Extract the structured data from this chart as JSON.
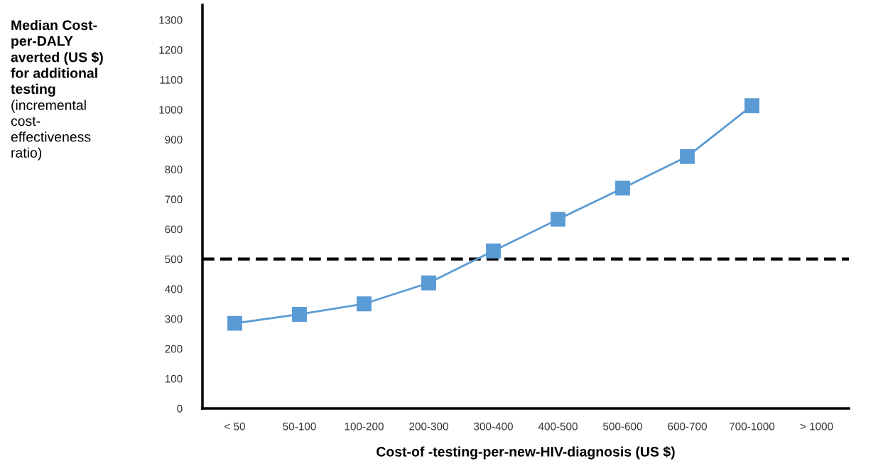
{
  "chart_data": {
    "type": "line",
    "xlabel": "Cost-of -testing-per-new-HIV-diagnosis (US $)",
    "ylabel": "Median Cost-per-DALY averted (US $) for additional testing",
    "annotations": [
      "(incremental cost-effectiveness ratio)"
    ],
    "categories": [
      "< 50",
      "50-100",
      "100-200",
      "200-300",
      "300-400",
      "400-500",
      "500-600",
      "600-700",
      "700-1000",
      "> 1000"
    ],
    "series": [
      {
        "color": "#5b9bd5",
        "values": [
          285,
          315,
          350,
          420,
          527,
          633,
          737,
          843,
          1013,
          null
        ]
      }
    ],
    "ylim": [
      0,
      1350
    ],
    "yticks": [
      0,
      100,
      200,
      300,
      400,
      500,
      600,
      700,
      800,
      900,
      1000,
      1100,
      1200,
      1300
    ],
    "ref_lines": [
      {
        "axis": "y",
        "value": 500,
        "color": "#000000",
        "line_style": "dashed"
      }
    ],
    "marker": "square",
    "line_style": "solid",
    "grid": false
  }
}
